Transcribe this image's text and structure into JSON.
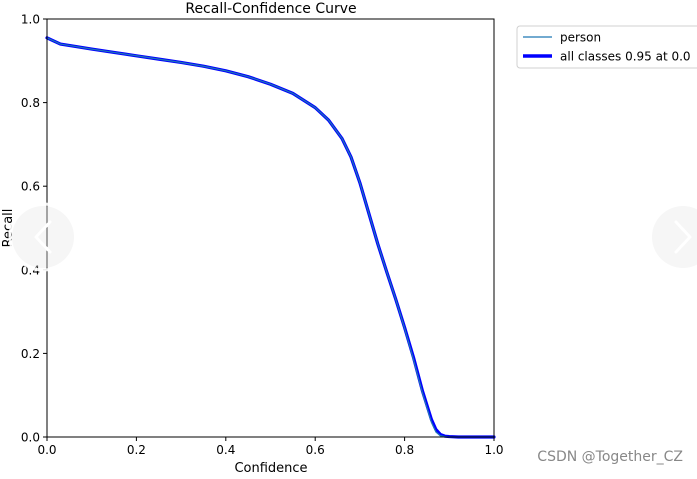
{
  "chart_data": {
    "type": "line",
    "title": "Recall-Confidence Curve",
    "xlabel": "Confidence",
    "ylabel": "Recall",
    "xlim": [
      0,
      1
    ],
    "ylim": [
      0,
      1
    ],
    "xticks": [
      "0.0",
      "0.2",
      "0.4",
      "0.6",
      "0.8",
      "1.0"
    ],
    "yticks": [
      "0.0",
      "0.2",
      "0.4",
      "0.6",
      "0.8",
      "1.0"
    ],
    "grid": false,
    "legend_position": "outside top-right",
    "series": [
      {
        "name": "person",
        "color": "#1f77b4",
        "style": "thin",
        "x": [
          0.0,
          0.01,
          0.03,
          0.06,
          0.1,
          0.15,
          0.2,
          0.25,
          0.3,
          0.35,
          0.4,
          0.45,
          0.5,
          0.55,
          0.6,
          0.63,
          0.66,
          0.68,
          0.7,
          0.72,
          0.74,
          0.76,
          0.78,
          0.8,
          0.82,
          0.84,
          0.86,
          0.87,
          0.88,
          0.89,
          0.9,
          0.92,
          1.0
        ],
        "y": [
          0.955,
          0.95,
          0.94,
          0.935,
          0.928,
          0.92,
          0.912,
          0.904,
          0.896,
          0.887,
          0.876,
          0.862,
          0.844,
          0.822,
          0.788,
          0.758,
          0.714,
          0.67,
          0.608,
          0.535,
          0.462,
          0.395,
          0.33,
          0.26,
          0.185,
          0.105,
          0.035,
          0.012,
          0.003,
          0.001,
          0.0,
          0.0,
          0.0
        ]
      },
      {
        "name": "all classes 0.95 at 0.0",
        "color": "#0000ff",
        "style": "thick",
        "x": [
          0.0,
          0.01,
          0.03,
          0.06,
          0.1,
          0.15,
          0.2,
          0.25,
          0.3,
          0.35,
          0.4,
          0.45,
          0.5,
          0.55,
          0.6,
          0.63,
          0.66,
          0.68,
          0.7,
          0.72,
          0.74,
          0.76,
          0.78,
          0.8,
          0.82,
          0.84,
          0.86,
          0.87,
          0.88,
          0.89,
          0.9,
          0.92,
          1.0
        ],
        "y": [
          0.955,
          0.95,
          0.94,
          0.935,
          0.928,
          0.92,
          0.912,
          0.904,
          0.896,
          0.887,
          0.876,
          0.862,
          0.844,
          0.822,
          0.788,
          0.758,
          0.714,
          0.67,
          0.608,
          0.535,
          0.462,
          0.395,
          0.33,
          0.262,
          0.19,
          0.11,
          0.042,
          0.018,
          0.006,
          0.002,
          0.001,
          0.0,
          0.0
        ]
      }
    ]
  },
  "watermark": "CSDN @Together_CZ",
  "nav": {
    "prev_icon": "chevron-left-icon",
    "next_icon": "chevron-right-icon"
  }
}
